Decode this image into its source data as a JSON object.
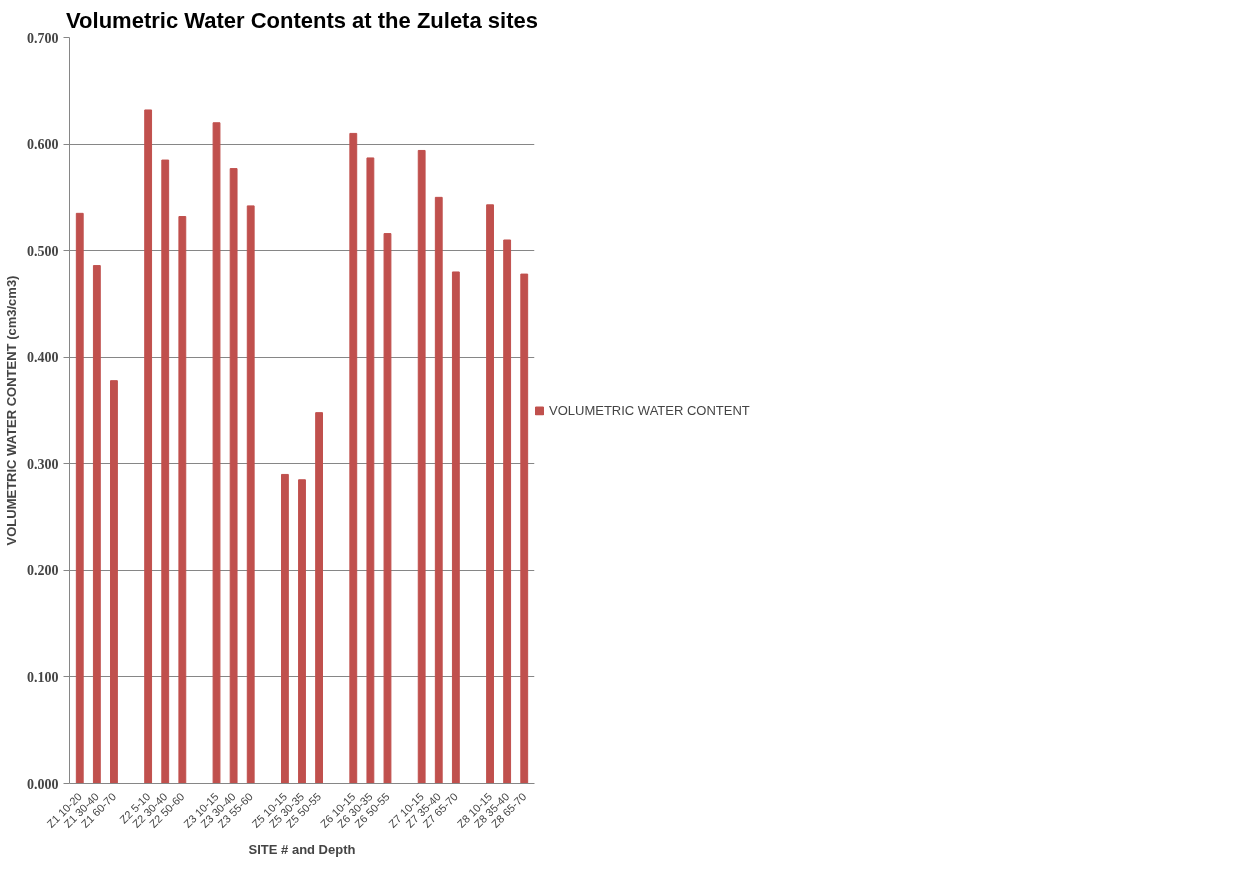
{
  "chart_data": {
    "type": "bar",
    "title": "Volumetric Water Contents at the Zuleta sites",
    "xlabel": "SITE # and Depth",
    "ylabel": "VOLUMETRIC WATER CONTENT (cm3/cm3)",
    "categories": [
      "Z1 10-20",
      "Z1 30-40",
      "Z1 60-70",
      null,
      "Z2 5-10",
      "Z2 30-40",
      "Z2 50-60",
      null,
      "Z3 10-15",
      "Z3 30-40",
      "Z3 55-60",
      null,
      "Z5 10-15",
      "Z5 30-35",
      "Z5 50-55",
      null,
      "Z6 10-15",
      "Z6 30-35",
      "Z6 50-55",
      null,
      "Z7 10-15",
      "Z7 35-40",
      "Z7 65-70",
      null,
      "Z8 10-15",
      "Z8 35-40",
      "Z8 65-70"
    ],
    "series": [
      {
        "name": "VOLUMETRIC WATER CONTENT",
        "color": "#c0504d",
        "values": [
          0.535,
          0.486,
          0.378,
          null,
          0.632,
          0.585,
          0.532,
          null,
          0.62,
          0.577,
          0.542,
          null,
          0.29,
          0.285,
          0.348,
          null,
          0.61,
          0.587,
          0.516,
          null,
          0.594,
          0.55,
          0.48,
          null,
          0.543,
          0.51,
          0.478
        ]
      }
    ],
    "ylim": [
      0,
      0.7
    ],
    "yticks": [
      {
        "value": 0,
        "label": "0.000"
      },
      {
        "value": 0.1,
        "label": "0.100"
      },
      {
        "value": 0.2,
        "label": "0.200"
      },
      {
        "value": 0.3,
        "label": "0.300"
      },
      {
        "value": 0.4,
        "label": "0.400"
      },
      {
        "value": 0.5,
        "label": "0.500"
      },
      {
        "value": 0.6,
        "label": "0.600"
      },
      {
        "value": 0.7,
        "label": "0.700"
      }
    ],
    "grid": "y",
    "legend": "right"
  }
}
